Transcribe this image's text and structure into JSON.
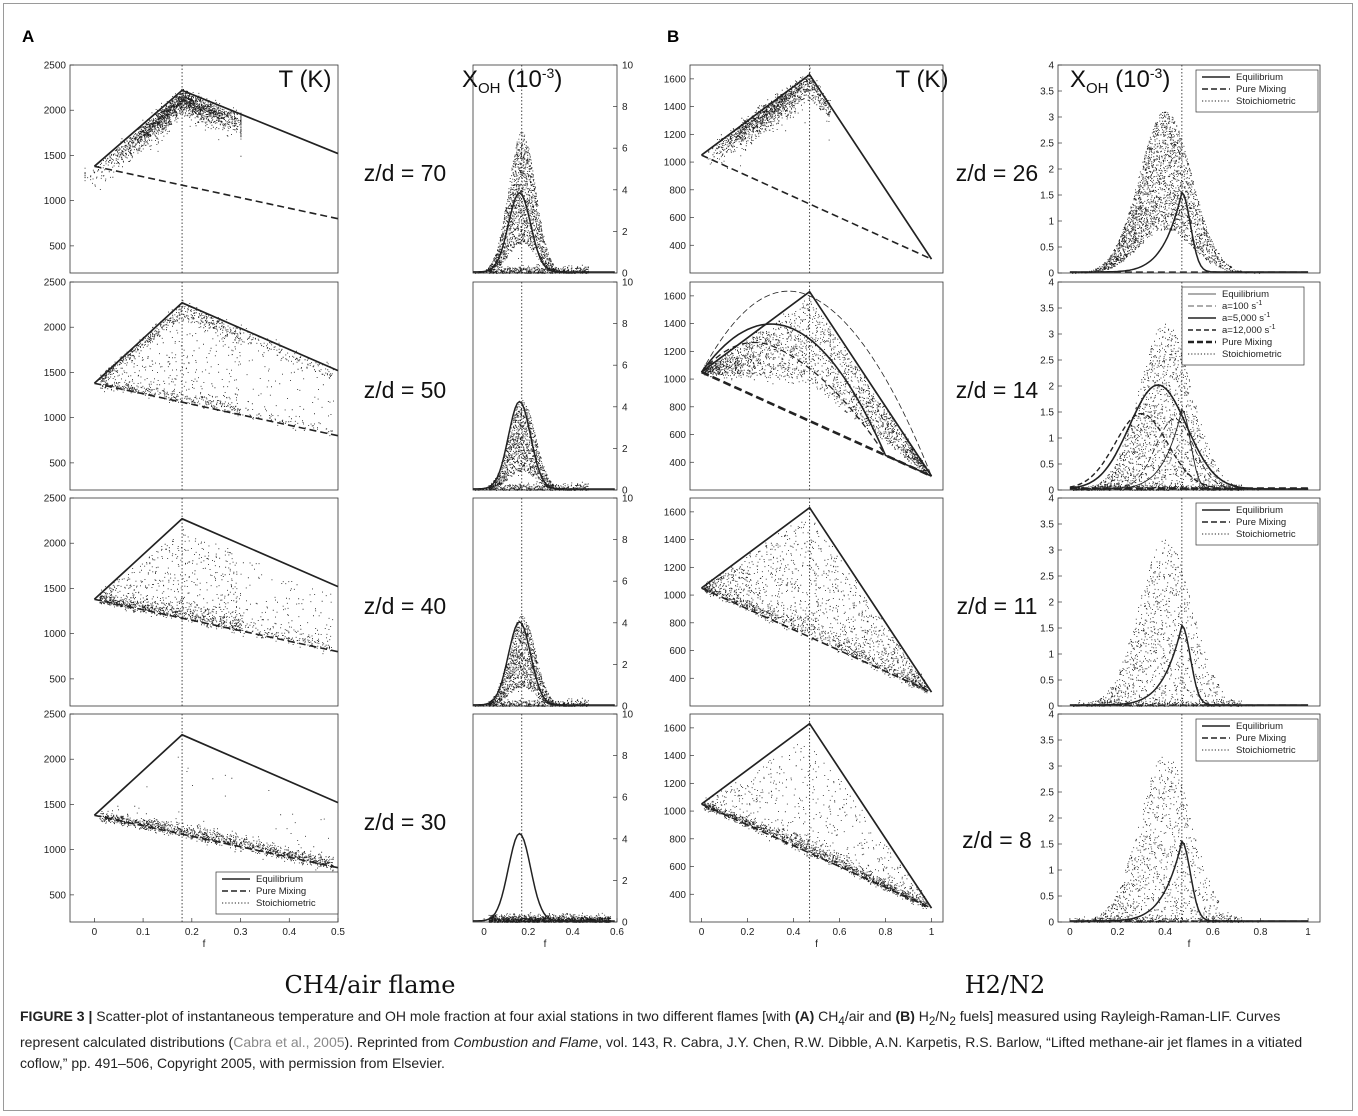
{
  "figure": {
    "panel_a_letter": "A",
    "panel_b_letter": "B",
    "flame_a_label": "CH4/air flame",
    "flame_b_label": "H2/N2",
    "temperature_label": "T (K)",
    "oh_label": "X",
    "oh_subscript": "OH",
    "oh_unit": "(10",
    "oh_exponent": "-3",
    "oh_close": ")",
    "f_label": "f"
  },
  "caption": {
    "figure_number": "FIGURE 3 |",
    "t1": " Scatter-plot of instantaneous temperature and OH mole fraction at four axial stations in two different flames [with ",
    "a_tag": "(A)",
    "t2": " CH",
    "sub4": "4",
    "t3": "/air and ",
    "b_tag": "(B)",
    "t4": " H",
    "sub2a": "2",
    "t5": "/N",
    "sub2b": "2",
    "t6": " fuels] measured using Rayleigh-Raman-LIF. Curves represent calculated distributions (",
    "citation": "Cabra et al., 2005",
    "t7": "). Reprinted from ",
    "journal": "Combustion and Flame",
    "t8": ", vol. 143, R. Cabra, J.Y. Chen, R.W. Dibble, A.N. Karpetis, R.S. Barlow, “Lifted methane-air jet flames in a vitiated coflow,” pp. 491–506, Copyright 2005, with permission from Elsevier."
  },
  "colors": {
    "frame": "#9a9a9a",
    "ink": "#222222",
    "scatter": "#1a1a1a",
    "citation": "#8a8a8a"
  },
  "chart_data": [
    {
      "id": "A-T",
      "type": "scatter",
      "flame": "CH4/air",
      "variable": "T (K)",
      "xlim": [
        -0.05,
        0.5
      ],
      "ylim": [
        200,
        2500
      ],
      "xticks": [
        "0",
        "0.1",
        "0.2",
        "0.3",
        "0.4",
        "0.5"
      ],
      "yticks": [
        "500",
        "1000",
        "1500",
        "2000",
        "2500"
      ],
      "stoichiometric_f": 0.18,
      "legend": [
        "Equilibrium",
        "Pure Mixing",
        "Stoichiometric"
      ],
      "rows": [
        {
          "label": "z/d = 70",
          "scatter_mode": "equilibrium",
          "equilibrium": [
            [
              0,
              1380
            ],
            [
              0.18,
              2220
            ],
            [
              0.5,
              1520
            ]
          ],
          "pure_mixing": [
            [
              0,
              1380
            ],
            [
              0.5,
              800
            ]
          ]
        },
        {
          "label": "z/d = 50",
          "scatter_mode": "mixed",
          "equilibrium": [
            [
              0,
              1380
            ],
            [
              0.18,
              2270
            ],
            [
              0.5,
              1520
            ]
          ],
          "pure_mixing": [
            [
              0,
              1380
            ],
            [
              0.5,
              800
            ]
          ]
        },
        {
          "label": "z/d = 40",
          "scatter_mode": "between",
          "equilibrium": [
            [
              0,
              1380
            ],
            [
              0.18,
              2270
            ],
            [
              0.5,
              1520
            ]
          ],
          "pure_mixing": [
            [
              0,
              1380
            ],
            [
              0.5,
              800
            ]
          ]
        },
        {
          "label": "z/d = 30",
          "scatter_mode": "mixing",
          "equilibrium": [
            [
              0,
              1380
            ],
            [
              0.18,
              2270
            ],
            [
              0.5,
              1520
            ]
          ],
          "pure_mixing": [
            [
              0,
              1380
            ],
            [
              0.5,
              800
            ]
          ]
        }
      ]
    },
    {
      "id": "A-OH",
      "type": "scatter",
      "flame": "CH4/air",
      "variable": "X_OH (10^-3)",
      "xlim": [
        -0.05,
        0.6
      ],
      "ylim": [
        0,
        10
      ],
      "xticks": [
        "0",
        "0.2",
        "0.4",
        "0.6"
      ],
      "yticks": [
        "0",
        "2",
        "4",
        "6",
        "8",
        "10"
      ],
      "stoichiometric_f": 0.17,
      "rows": [
        {
          "label": "z/d = 70",
          "equilibrium_peak": [
            0.16,
            3.8
          ]
        },
        {
          "label": "z/d = 50",
          "equilibrium_peak": [
            0.16,
            4.2
          ]
        },
        {
          "label": "z/d = 40",
          "equilibrium_peak": [
            0.16,
            4.0
          ]
        },
        {
          "label": "z/d = 30",
          "equilibrium_peak": [
            0.16,
            4.2
          ]
        }
      ]
    },
    {
      "id": "B-T",
      "type": "scatter",
      "flame": "H2/N2",
      "variable": "T (K)",
      "xlim": [
        -0.05,
        1.05
      ],
      "ylim": [
        200,
        1700
      ],
      "xticks": [
        "0",
        "0.2",
        "0.4",
        "0.6",
        "0.8",
        "1"
      ],
      "yticks": [
        "400",
        "600",
        "800",
        "1000",
        "1200",
        "1400",
        "1600"
      ],
      "stoichiometric_f": 0.47,
      "rows": [
        {
          "label": "z/d = 26",
          "scatter_mode": "equilibrium",
          "equilibrium": [
            [
              0,
              1050
            ],
            [
              0.47,
              1630
            ],
            [
              1,
              300
            ]
          ],
          "pure_mixing": [
            [
              0,
              1050
            ],
            [
              1,
              300
            ]
          ]
        },
        {
          "label": "z/d = 14",
          "scatter_mode": "strained",
          "equilibrium": [
            [
              0,
              1050
            ],
            [
              0.47,
              1630
            ],
            [
              1,
              300
            ]
          ],
          "pure_mixing": [
            [
              0,
              1050
            ],
            [
              1,
              300
            ]
          ],
          "strained_flamelets": [
            {
              "name": "a=100 s-1",
              "peak": [
                0.47,
                1600
              ]
            },
            {
              "name": "a=5,000 s-1",
              "peak": [
                0.4,
                1360
              ]
            },
            {
              "name": "a=12,000 s-1",
              "peak": [
                0.32,
                1230
              ]
            }
          ]
        },
        {
          "label": "z/d = 11",
          "scatter_mode": "between",
          "equilibrium": [
            [
              0,
              1050
            ],
            [
              0.47,
              1630
            ],
            [
              1,
              300
            ]
          ],
          "pure_mixing": [
            [
              0,
              1050
            ],
            [
              1,
              300
            ]
          ]
        },
        {
          "label": "z/d = 8",
          "scatter_mode": "mixing",
          "equilibrium": [
            [
              0,
              1050
            ],
            [
              0.47,
              1630
            ],
            [
              1,
              300
            ]
          ],
          "pure_mixing": [
            [
              0,
              1050
            ],
            [
              1,
              300
            ]
          ]
        }
      ]
    },
    {
      "id": "B-OH",
      "type": "scatter",
      "flame": "H2/N2",
      "variable": "X_OH (10^-3)",
      "xlim": [
        -0.05,
        1.05
      ],
      "ylim": [
        0,
        4
      ],
      "xticks": [
        "0",
        "0.2",
        "0.4",
        "0.6",
        "0.8",
        "1"
      ],
      "yticks": [
        "0",
        "0.5",
        "1",
        "1.5",
        "2",
        "2.5",
        "3",
        "3.5",
        "4"
      ],
      "stoichiometric_f": 0.47,
      "legend": [
        "Equilibrium",
        "Pure Mixing",
        "Stoichiometric"
      ],
      "legend_z14": [
        "Equilibrium",
        "a=100 s",
        "a=5,000 s",
        "a=12,000 s",
        "Pure Mixing",
        "Stoichiometric"
      ],
      "legend_z14_exponent": "-1",
      "rows": [
        {
          "label": "z/d = 26",
          "equilibrium_peak": [
            0.47,
            1.55
          ]
        },
        {
          "label": "z/d = 14",
          "equilibrium_peak": [
            0.47,
            1.55
          ],
          "a5000_peak": [
            0.37,
            2.05
          ],
          "a12000_peak": [
            0.3,
            1.5
          ]
        },
        {
          "label": "z/d = 11",
          "equilibrium_peak": [
            0.47,
            1.55
          ]
        },
        {
          "label": "z/d = 8",
          "equilibrium_peak": [
            0.47,
            1.55
          ]
        }
      ]
    }
  ]
}
